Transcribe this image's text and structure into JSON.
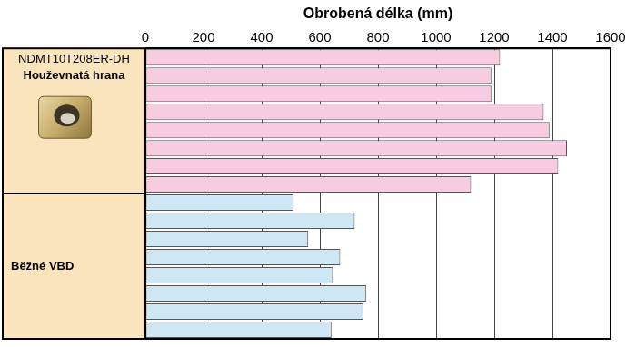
{
  "chart_data": {
    "type": "bar",
    "orientation": "horizontal",
    "title": "Obrobená délka (mm)",
    "categories": [
      null,
      null,
      null,
      null,
      null,
      null,
      null,
      null,
      null,
      null,
      null,
      null,
      null,
      null,
      null,
      null
    ],
    "series": [
      {
        "name": [
          "NDMT10T208ER-DH",
          "Houževnatá hrana"
        ],
        "color": "#f7cbe0",
        "values": [
          1220,
          1190,
          1190,
          1370,
          1390,
          1450,
          1420,
          1120,
          null,
          null,
          null,
          null,
          null,
          null,
          null,
          null
        ]
      },
      {
        "name": [
          "Běžné VBD"
        ],
        "color": "#cfe6f5",
        "values": [
          null,
          null,
          null,
          null,
          null,
          null,
          null,
          null,
          510,
          720,
          560,
          670,
          645,
          760,
          750,
          640
        ]
      }
    ],
    "xlim": [
      0,
      1600
    ],
    "xticks": [
      0,
      200,
      400,
      600,
      800,
      1000,
      1200,
      1400,
      1600
    ],
    "grid": true
  }
}
